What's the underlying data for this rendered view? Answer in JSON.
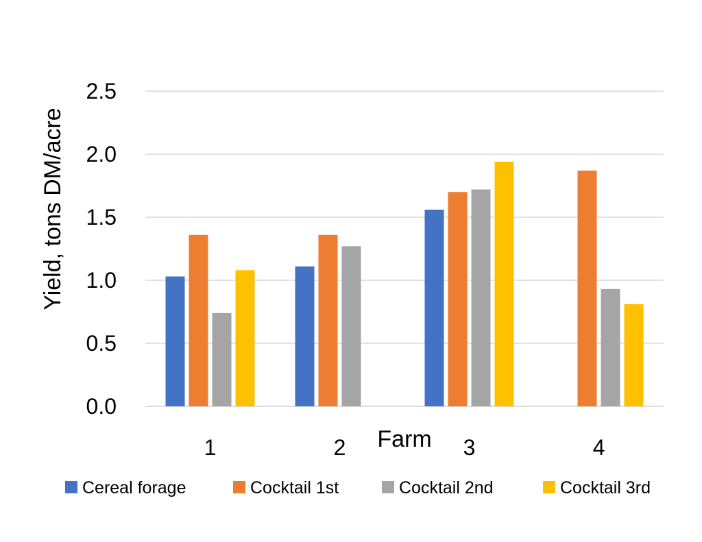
{
  "chart_data": {
    "type": "bar",
    "title": "",
    "xlabel": "Farm",
    "ylabel": "Yield, tons DM/acre",
    "categories": [
      "1",
      "2",
      "3",
      "4"
    ],
    "ylim": [
      0,
      2.5
    ],
    "yticks": [
      "0.0",
      "0.5",
      "1.0",
      "1.5",
      "2.0",
      "2.5"
    ],
    "grid": true,
    "legend_position": "bottom",
    "series": [
      {
        "name": "Cereal forage",
        "color": "#4472C4",
        "values": [
          1.03,
          1.11,
          1.56,
          null
        ]
      },
      {
        "name": "Cocktail 1st",
        "color": "#ED7D31",
        "values": [
          1.36,
          1.36,
          1.7,
          1.87
        ]
      },
      {
        "name": "Cocktail 2nd",
        "color": "#A5A5A5",
        "values": [
          0.74,
          1.27,
          1.72,
          0.93
        ]
      },
      {
        "name": "Cocktail 3rd",
        "color": "#FFC000",
        "values": [
          1.08,
          null,
          1.94,
          0.81
        ]
      }
    ]
  }
}
